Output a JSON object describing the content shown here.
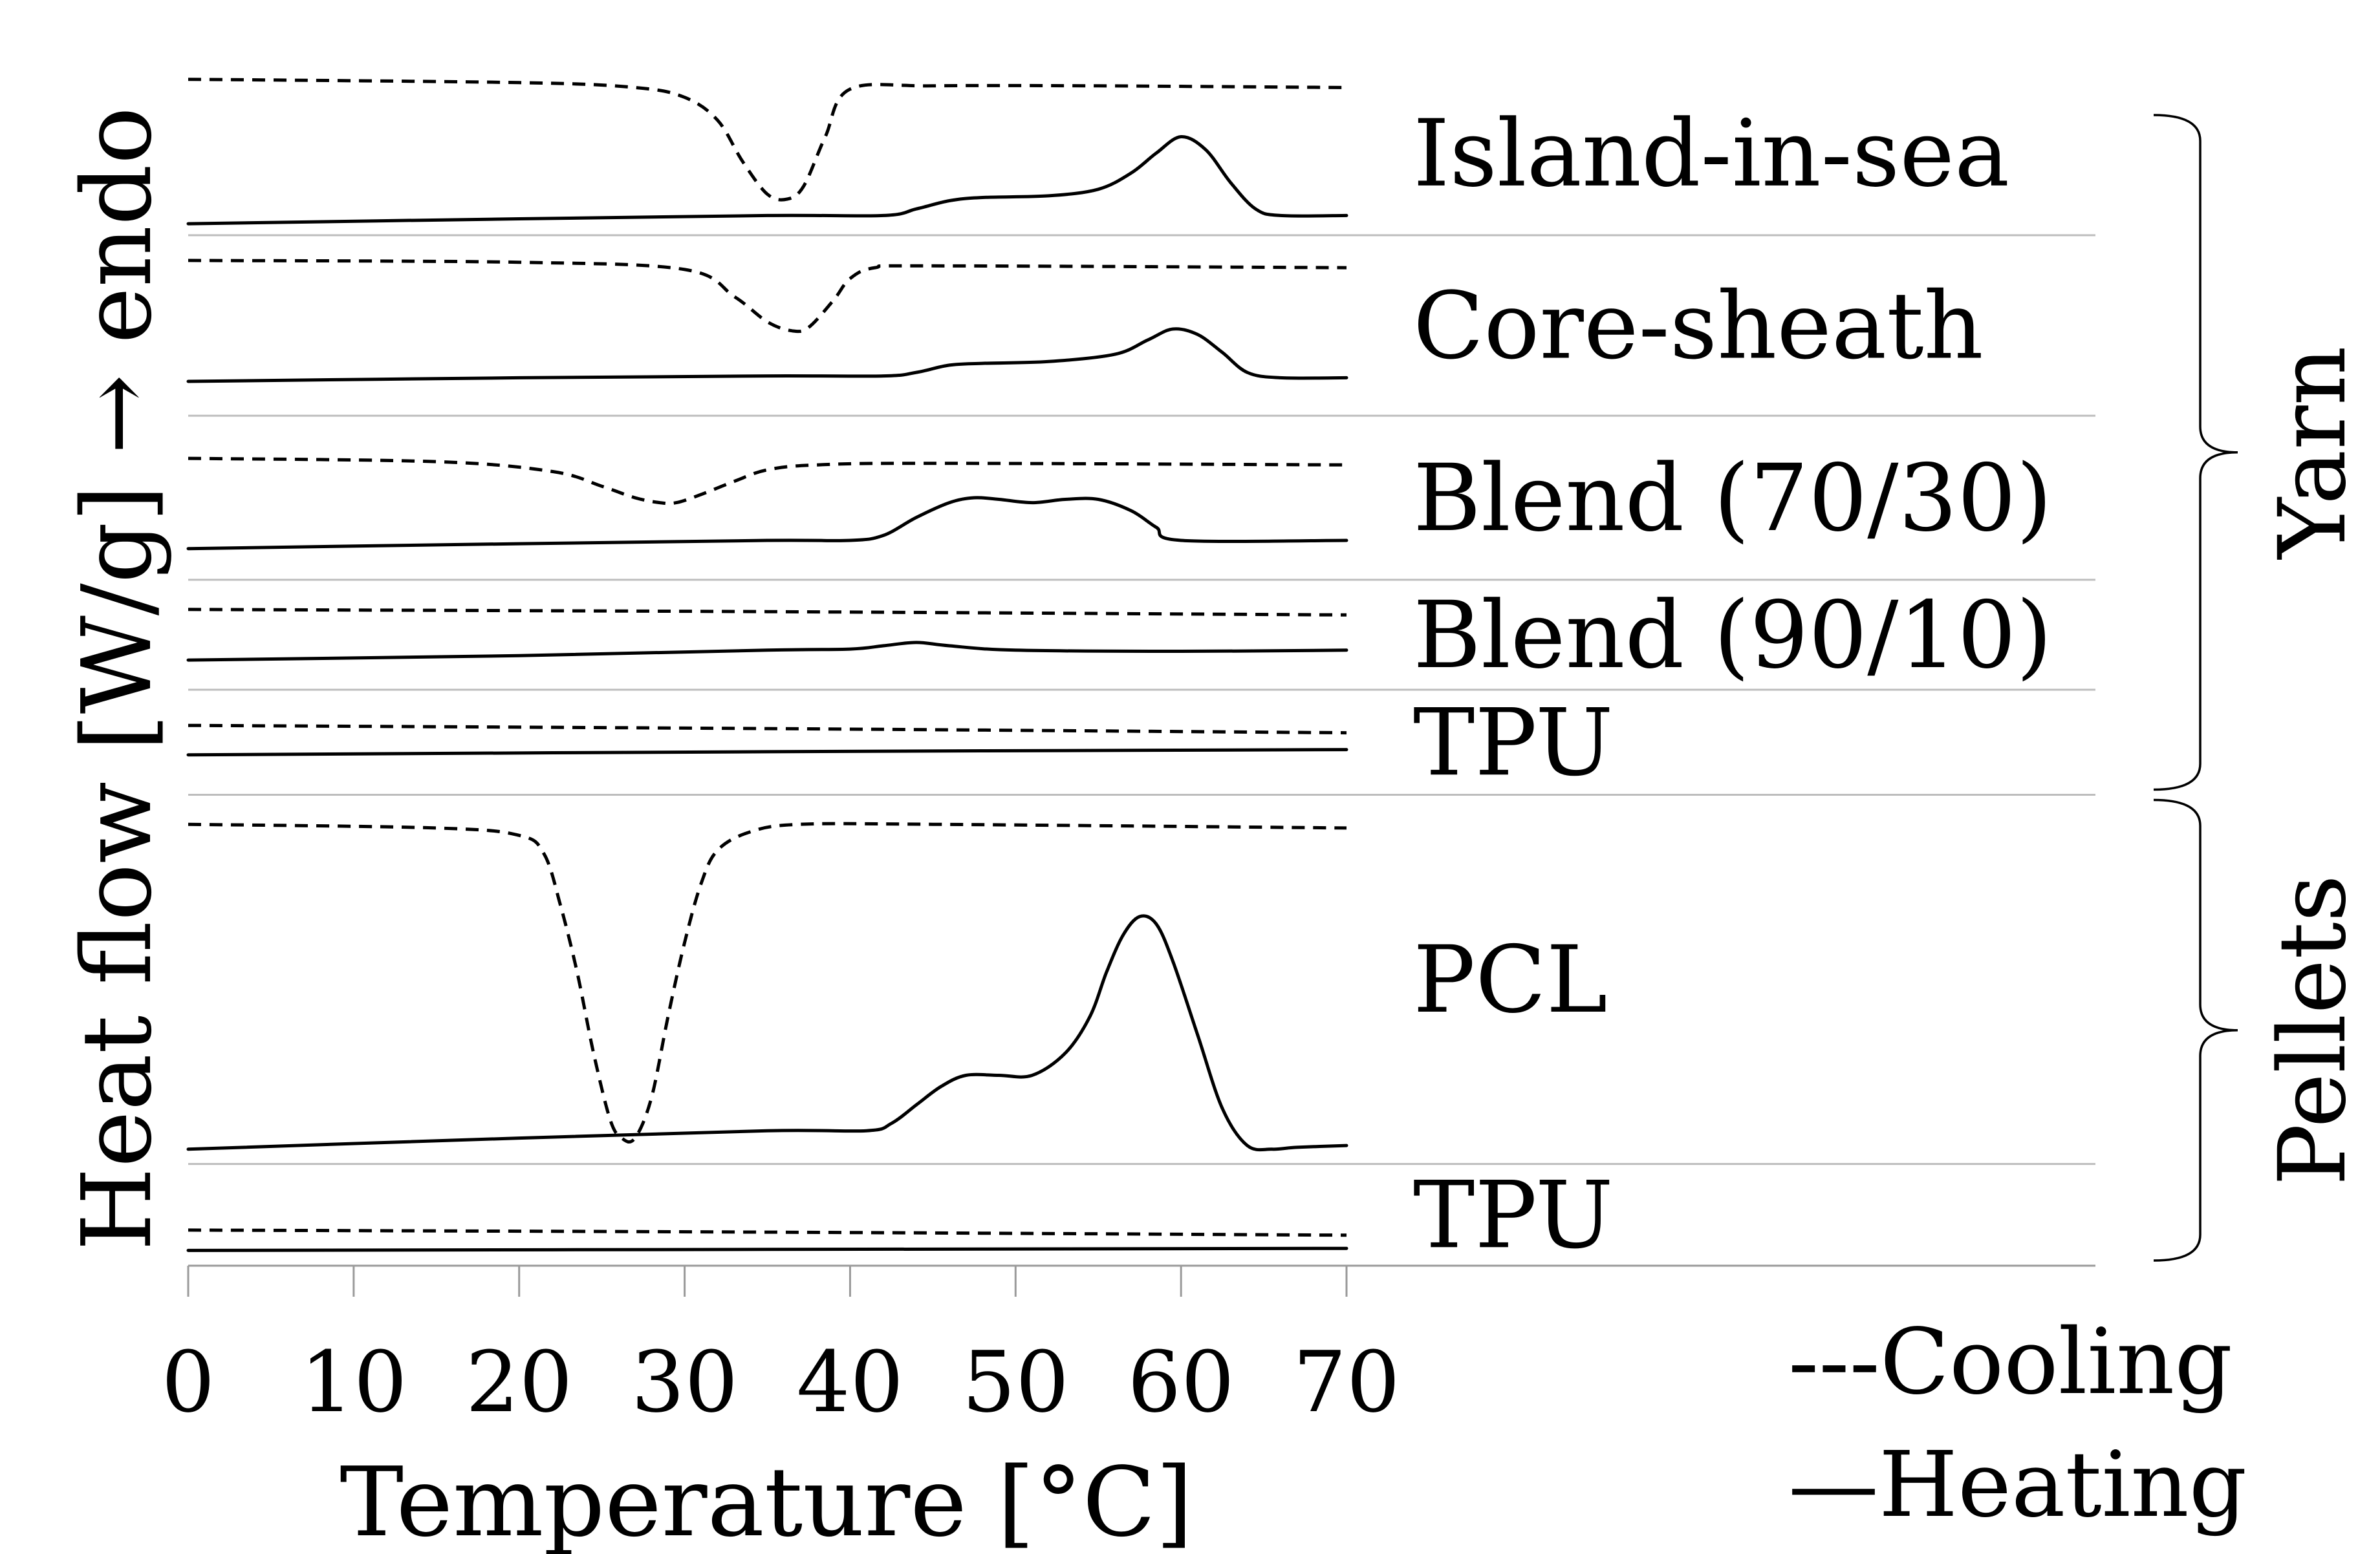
{
  "chart_data": {
    "type": "line",
    "xlabel": "Temperature [°C]",
    "ylabel": "Heat flow [W/g] → endo",
    "xlim": [
      0,
      70
    ],
    "xticks": [
      0,
      10,
      20,
      30,
      40,
      50,
      60,
      70
    ],
    "xtick_labels": [
      "0",
      "10",
      "20",
      "30",
      "40",
      "50",
      "60",
      "70"
    ],
    "y_units_note": "relative offsets in normalized units; each panel is stacked, values are not absolute",
    "legend": {
      "position": "bottom-right",
      "cooling": "---Cooling",
      "heating": "—Heating"
    },
    "groups": [
      {
        "label": "Yarn",
        "first_panel": 0,
        "last_panel": 4
      },
      {
        "label": "Pellets",
        "first_panel": 5,
        "last_panel": 6
      }
    ],
    "panels": [
      {
        "label": "Island-in-sea",
        "yspan": 1.0,
        "cooling": {
          "x": [
            0,
            20,
            27,
            30,
            32,
            33.5,
            35,
            36.2,
            37.2,
            38.5,
            40,
            45,
            55,
            70
          ],
          "y": [
            0.95,
            0.93,
            0.9,
            0.84,
            0.7,
            0.45,
            0.25,
            0.22,
            0.3,
            0.6,
            0.89,
            0.91,
            0.91,
            0.9
          ]
        },
        "heating": {
          "x": [
            0,
            20,
            35,
            42,
            44,
            46,
            48,
            52,
            55,
            57,
            58.5,
            60,
            61.5,
            63,
            64.5,
            66,
            70
          ],
          "y": [
            0.07,
            0.1,
            0.12,
            0.12,
            0.16,
            0.21,
            0.23,
            0.24,
            0.28,
            0.38,
            0.5,
            0.6,
            0.52,
            0.32,
            0.16,
            0.12,
            0.12
          ]
        }
      },
      {
        "label": "Core-sheath",
        "yspan": 1.1,
        "cooling": {
          "x": [
            0,
            20,
            30,
            33,
            35,
            36.5,
            37.5,
            39,
            40,
            41.5,
            45,
            70
          ],
          "y": [
            0.86,
            0.85,
            0.81,
            0.66,
            0.52,
            0.47,
            0.49,
            0.64,
            0.76,
            0.82,
            0.83,
            0.82
          ]
        },
        "heating": {
          "x": [
            0,
            20,
            35,
            42,
            44,
            46,
            48,
            52,
            56,
            58,
            59.5,
            61,
            62.5,
            64,
            66,
            70
          ],
          "y": [
            0.19,
            0.21,
            0.22,
            0.22,
            0.24,
            0.28,
            0.29,
            0.3,
            0.34,
            0.42,
            0.48,
            0.45,
            0.35,
            0.24,
            0.21,
            0.21
          ]
        }
      },
      {
        "label": "Blend (70/30)",
        "yspan": 1.0,
        "cooling": {
          "x": [
            0,
            15,
            22,
            25,
            27,
            28.5,
            29.5,
            31,
            33,
            35,
            38,
            45,
            70
          ],
          "y": [
            0.74,
            0.72,
            0.66,
            0.57,
            0.5,
            0.47,
            0.47,
            0.52,
            0.6,
            0.67,
            0.7,
            0.71,
            0.7
          ]
        },
        "heating": {
          "x": [
            0,
            20,
            35,
            40,
            42,
            44,
            46,
            47.5,
            49,
            51,
            53,
            55,
            57,
            58.5,
            60,
            70
          ],
          "y": [
            0.19,
            0.22,
            0.24,
            0.24,
            0.27,
            0.38,
            0.47,
            0.5,
            0.49,
            0.47,
            0.49,
            0.49,
            0.42,
            0.32,
            0.24,
            0.24
          ]
        }
      },
      {
        "label": "Blend (90/10)",
        "yspan": 0.67,
        "cooling": {
          "x": [
            0,
            35,
            70
          ],
          "y": [
            0.73,
            0.71,
            0.68
          ]
        },
        "heating": {
          "x": [
            0,
            20,
            35,
            40,
            42,
            44,
            46,
            50,
            60,
            70
          ],
          "y": [
            0.27,
            0.31,
            0.36,
            0.37,
            0.4,
            0.43,
            0.4,
            0.36,
            0.35,
            0.36
          ]
        }
      },
      {
        "label": "TPU",
        "yspan": 0.64,
        "cooling": {
          "x": [
            0,
            35,
            70
          ],
          "y": [
            0.66,
            0.63,
            0.59
          ]
        },
        "heating": {
          "x": [
            0,
            35,
            70
          ],
          "y": [
            0.38,
            0.41,
            0.43
          ]
        }
      },
      {
        "label": "PCL",
        "yspan": 2.25,
        "cooling": {
          "x": [
            0,
            15,
            20,
            21.5,
            22.5,
            23.5,
            24.5,
            25.5,
            26.2,
            27,
            28,
            29,
            30,
            31,
            32,
            34,
            37,
            45,
            70
          ],
          "y": [
            0.92,
            0.91,
            0.89,
            0.84,
            0.7,
            0.52,
            0.3,
            0.12,
            0.07,
            0.07,
            0.18,
            0.4,
            0.6,
            0.76,
            0.85,
            0.9,
            0.92,
            0.92,
            0.91
          ]
        },
        "heating": {
          "x": [
            0,
            20,
            35,
            41,
            42.5,
            44,
            45.5,
            47,
            49,
            51,
            53,
            54.5,
            55.5,
            56.5,
            57.5,
            58.5,
            59.5,
            61,
            62.5,
            64,
            65.5,
            67,
            70
          ],
          "y": [
            0.04,
            0.07,
            0.09,
            0.09,
            0.11,
            0.16,
            0.21,
            0.24,
            0.24,
            0.24,
            0.3,
            0.4,
            0.52,
            0.62,
            0.67,
            0.65,
            0.55,
            0.35,
            0.15,
            0.05,
            0.04,
            0.045,
            0.05
          ]
        }
      },
      {
        "label": "TPU",
        "yspan": 0.62,
        "cooling": {
          "x": [
            0,
            35,
            70
          ],
          "y": [
            0.35,
            0.33,
            0.3
          ]
        },
        "heating": {
          "x": [
            0,
            35,
            70
          ],
          "y": [
            0.15,
            0.16,
            0.17
          ]
        }
      }
    ]
  }
}
